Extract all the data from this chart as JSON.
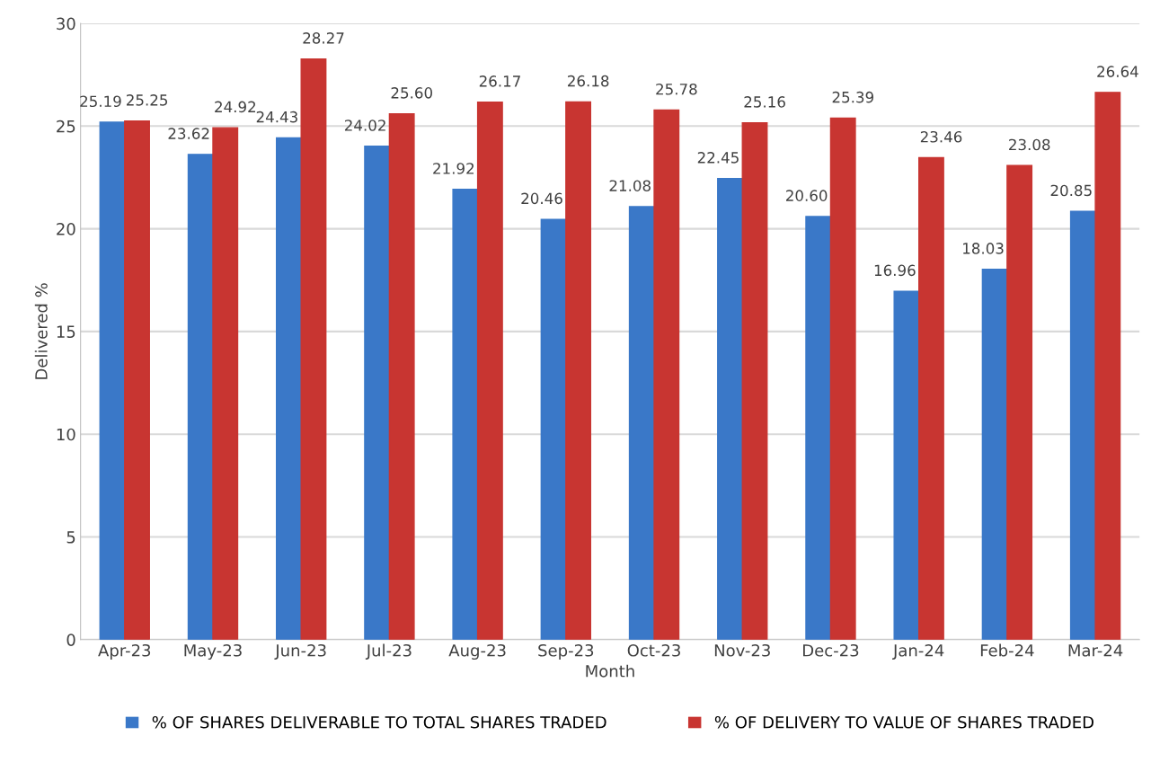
{
  "chart_data": {
    "type": "bar",
    "xlabel": "Month",
    "ylabel": "Delivered %",
    "categories": [
      "Apr-23",
      "May-23",
      "Jun-23",
      "Jul-23",
      "Aug-23",
      "Sep-23",
      "Oct-23",
      "Nov-23",
      "Dec-23",
      "Jan-24",
      "Feb-24",
      "Mar-24"
    ],
    "series": [
      {
        "name": "% OF SHARES DELIVERABLE TO TOTAL SHARES TRADED",
        "color": "#3a78c8",
        "values": [
          25.19,
          23.62,
          24.43,
          24.02,
          21.92,
          20.46,
          21.08,
          22.45,
          20.6,
          16.96,
          18.03,
          20.85
        ],
        "value_labels": [
          "25.19",
          "23.62",
          "24.43",
          "24.02",
          "21.92",
          "20.46",
          "21.08",
          "22.45",
          "20.60",
          "16.96",
          "18.03",
          "20.85"
        ]
      },
      {
        "name": "% OF DELIVERY TO VALUE OF SHARES TRADED",
        "color": "#c83531",
        "values": [
          25.25,
          24.92,
          28.27,
          25.6,
          26.17,
          26.18,
          25.78,
          25.16,
          25.39,
          23.46,
          23.08,
          26.64
        ],
        "value_labels": [
          "25.25",
          "24.92",
          "28.27",
          "25.60",
          "26.17",
          "26.18",
          "25.78",
          "25.16",
          "25.39",
          "23.46",
          "23.08",
          "26.64"
        ]
      }
    ],
    "ylim": [
      0,
      30
    ],
    "yticks": [
      0,
      5,
      10,
      15,
      20,
      25,
      30
    ],
    "grid": "y",
    "legend": "bottom"
  }
}
